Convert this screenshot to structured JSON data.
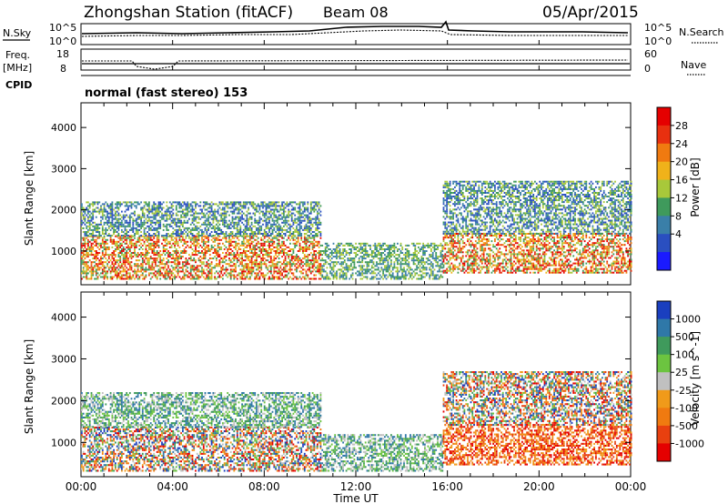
{
  "header": {
    "title": "Zhongshan Station (fitACF)",
    "beam": "Beam 08",
    "date": "05/Apr/2015"
  },
  "top_panels": {
    "nsky_label": "N.Sky",
    "nsearch_label": "N.Search",
    "freq_label_1": "Freq.",
    "freq_label_2": "[MHz]",
    "nave_label": "Nave",
    "cpid_label": "CPID",
    "cpid_value": "normal (fast stereo) 153",
    "nsky_ticks": [
      "10^5",
      "10^0"
    ],
    "nsearch_ticks": [
      "10^5",
      "10^0"
    ],
    "freq_ticks": [
      "18",
      "8"
    ],
    "nave_ticks": [
      "60",
      "0"
    ]
  },
  "chart_data": [
    {
      "type": "heatmap",
      "name": "power-panel",
      "xlabel": "Time UT",
      "ylabel": "Slant Range [km]",
      "x_ticks": [
        "00:00",
        "04:00",
        "08:00",
        "12:00",
        "16:00",
        "20:00",
        "00:00"
      ],
      "y_ticks": [
        1000,
        2000,
        3000,
        4000
      ],
      "ylim": [
        180,
        4600
      ],
      "xlim_hours": [
        0,
        24
      ],
      "colorbar": {
        "label": "Power [dB]",
        "ticks": [
          "4",
          "8",
          "12",
          "16",
          "20",
          "24",
          "28"
        ],
        "colors": [
          "#1a1aff",
          "#2a4fc0",
          "#3a7fa8",
          "#3f9a5c",
          "#a8c83a",
          "#f0b21a",
          "#f07a10",
          "#e8300f",
          "#e50000"
        ]
      },
      "regions": [
        {
          "t0": 0.0,
          "t1": 10.5,
          "r0": 300,
          "r1": 1350,
          "level": "high"
        },
        {
          "t0": 0.0,
          "t1": 10.5,
          "r0": 1350,
          "r1": 2200,
          "level": "mid"
        },
        {
          "t0": 10.5,
          "t1": 15.8,
          "r0": 300,
          "r1": 1200,
          "level": "low"
        },
        {
          "t0": 15.8,
          "t1": 24.0,
          "r0": 450,
          "r1": 1400,
          "level": "high"
        },
        {
          "t0": 15.8,
          "t1": 24.0,
          "r0": 1400,
          "r1": 2700,
          "level": "mid"
        }
      ]
    },
    {
      "type": "heatmap",
      "name": "velocity-panel",
      "xlabel": "Time UT",
      "ylabel": "Slant Range [km]",
      "x_ticks": [
        "00:00",
        "04:00",
        "08:00",
        "12:00",
        "16:00",
        "20:00",
        "00:00"
      ],
      "y_ticks": [
        1000,
        2000,
        3000,
        4000
      ],
      "ylim": [
        180,
        4600
      ],
      "xlim_hours": [
        0,
        24
      ],
      "colorbar": {
        "label": "Velocity [m s^-1]",
        "ticks": [
          "1000",
          "500",
          "100",
          "25",
          "-25",
          "-100",
          "-500",
          "-1000"
        ],
        "colors": [
          "#1a3fbf",
          "#2f78a8",
          "#3f9a5c",
          "#6cc440",
          "#c0c0c0",
          "#f09a1a",
          "#f07a10",
          "#e8400f",
          "#e50000"
        ]
      },
      "regions": [
        {
          "t0": 0.0,
          "t1": 10.5,
          "r0": 300,
          "r1": 1350,
          "level": "mixed"
        },
        {
          "t0": 0.0,
          "t1": 10.5,
          "r0": 1350,
          "r1": 2200,
          "level": "low"
        },
        {
          "t0": 10.5,
          "t1": 15.8,
          "r0": 300,
          "r1": 1200,
          "level": "low"
        },
        {
          "t0": 15.8,
          "t1": 24.0,
          "r0": 450,
          "r1": 1400,
          "level": "neg"
        },
        {
          "t0": 15.8,
          "t1": 24.0,
          "r0": 1400,
          "r1": 2700,
          "level": "mixed"
        }
      ]
    }
  ]
}
